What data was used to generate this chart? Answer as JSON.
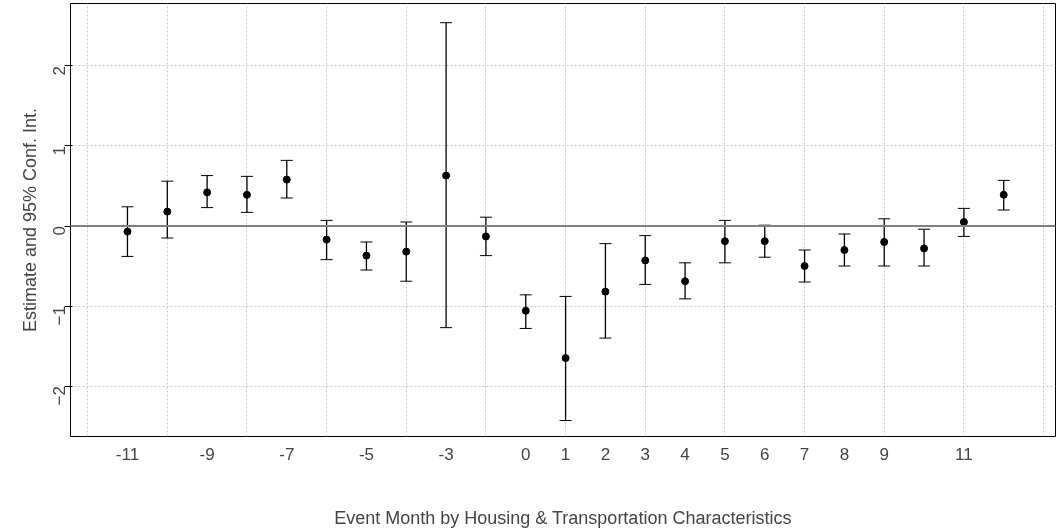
{
  "chart_data": {
    "type": "scatter",
    "xlabel": "Event Month by Housing & Transportation Characteristics",
    "ylabel": "Estimate and 95% Conf. Int.",
    "categories": [
      "-11",
      null,
      "-9",
      null,
      "-7",
      null,
      "-5",
      null,
      "-3",
      null,
      "0",
      "1",
      "2",
      "3",
      "4",
      "5",
      "6",
      "7",
      "8",
      "9",
      null,
      "11",
      null
    ],
    "series": [
      {
        "color": "#000000",
        "values": [
          -0.07,
          0.18,
          0.42,
          0.39,
          0.58,
          -0.17,
          -0.37,
          -0.32,
          0.63,
          -0.13,
          -1.06,
          -1.65,
          -0.82,
          -0.43,
          -0.69,
          -0.19,
          -0.19,
          -0.5,
          -0.3,
          -0.2,
          -0.28,
          0.05,
          0.39
        ],
        "errors": [
          [
            -0.38,
            0.24
          ],
          [
            -0.15,
            0.56
          ],
          [
            0.23,
            0.63
          ],
          [
            0.17,
            0.62
          ],
          [
            0.35,
            0.82
          ],
          [
            -0.42,
            0.07
          ],
          [
            -0.55,
            -0.2
          ],
          [
            -0.69,
            0.05
          ],
          [
            -1.27,
            2.54
          ],
          [
            -0.37,
            0.11
          ],
          [
            -1.28,
            -0.86
          ],
          [
            -2.43,
            -0.88
          ],
          [
            -1.4,
            -0.22
          ],
          [
            -0.73,
            -0.12
          ],
          [
            -0.91,
            -0.46
          ],
          [
            -0.46,
            0.07
          ],
          [
            -0.39,
            0.01
          ],
          [
            -0.7,
            -0.3
          ],
          [
            -0.5,
            -0.1
          ],
          [
            -0.5,
            0.09
          ],
          [
            -0.5,
            -0.04
          ],
          [
            -0.13,
            0.22
          ],
          [
            0.2,
            0.57
          ]
        ]
      }
    ],
    "ylim": [
      -2.63,
      2.78
    ],
    "yticks": [
      -2,
      -1,
      0,
      1,
      2
    ],
    "ref_lines": [
      {
        "axis": "y",
        "value": 0,
        "color": "#808080"
      }
    ],
    "grid": true,
    "marker": "circle"
  }
}
